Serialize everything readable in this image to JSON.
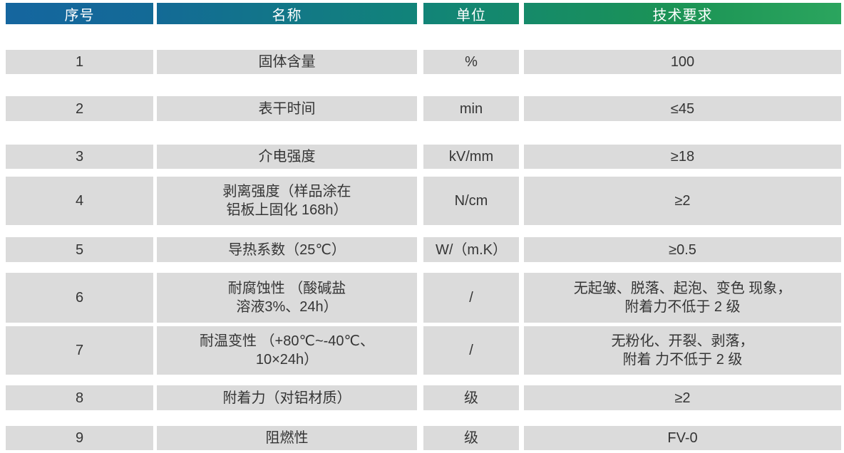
{
  "table": {
    "columns": [
      {
        "label": "序号"
      },
      {
        "label": "名称"
      },
      {
        "label": "单位"
      },
      {
        "label": "技术要求"
      }
    ],
    "rows": [
      {
        "no": "1",
        "name": "固体含量",
        "unit": "%",
        "requirement": "100"
      },
      {
        "no": "2",
        "name": "表干时间",
        "unit": "min",
        "requirement": "≤45"
      },
      {
        "no": "3",
        "name": "介电强度",
        "unit": "kV/mm",
        "requirement": "≥18"
      },
      {
        "no": "4",
        "name": "剥离强度（样品涂在\n铝板上固化 168h）",
        "unit": "N/cm",
        "requirement": "≥2"
      },
      {
        "no": "5",
        "name": "导热系数（25℃）",
        "unit": "W/（m.K）",
        "requirement": "≥0.5"
      },
      {
        "no": "6",
        "name": "耐腐蚀性 （酸碱盐\n溶液3%、24h）",
        "unit": "/",
        "requirement": "无起皱、脱落、起泡、变色 现象，\n附着力不低于 2 级"
      },
      {
        "no": "7",
        "name": "耐温变性 （+80℃~-40℃、\n10×24h）",
        "unit": "/",
        "requirement": "无粉化、开裂、剥落，\n附着 力不低于 2 级"
      },
      {
        "no": "8",
        "name": "附着力（对铝材质）",
        "unit": "级",
        "requirement": "≥2"
      },
      {
        "no": "9",
        "name": "阻燃性",
        "unit": "级",
        "requirement": "FV-0"
      }
    ]
  },
  "colors": {
    "header_gradient_start": "#15669f",
    "header_gradient_mid": "#11837a",
    "header_gradient_end": "#2ba55e",
    "cell_background": "#dbdbdb",
    "header_text": "#ffffff",
    "body_text": "#353535"
  }
}
